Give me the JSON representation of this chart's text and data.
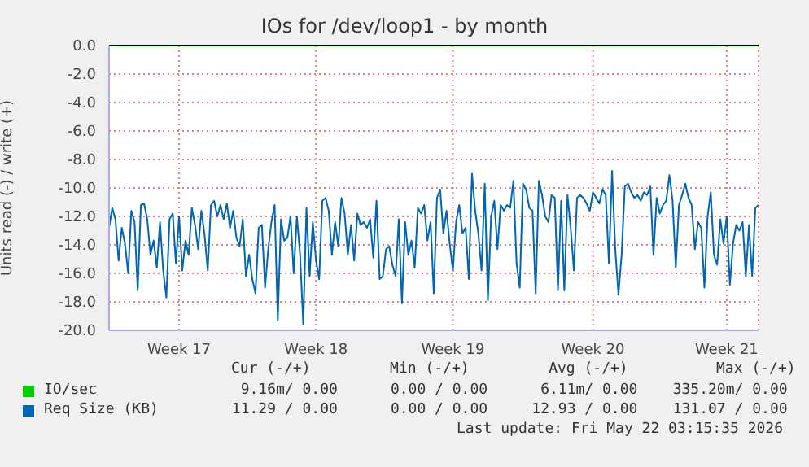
{
  "chart_data": {
    "type": "line",
    "title": "IOs for /dev/loop1 - by month",
    "ylabel": "Units read (-) / write (+)",
    "categories": [
      null,
      null,
      null,
      null,
      null,
      null,
      null,
      null,
      null,
      null,
      null,
      null,
      null,
      null,
      null,
      null,
      null,
      null,
      null,
      null,
      null,
      null,
      "Week 17",
      null,
      null,
      null,
      null,
      null,
      null,
      null,
      null,
      null,
      null,
      null,
      null,
      null,
      null,
      null,
      null,
      null,
      null,
      null,
      null,
      null,
      null,
      null,
      null,
      null,
      null,
      null,
      null,
      null,
      null,
      null,
      null,
      null,
      null,
      null,
      null,
      null,
      null,
      null,
      null,
      null,
      null,
      "Week 18",
      null,
      null,
      null,
      null,
      null,
      null,
      null,
      null,
      null,
      null,
      null,
      null,
      null,
      null,
      null,
      null,
      null,
      null,
      null,
      null,
      null,
      null,
      null,
      null,
      null,
      null,
      null,
      null,
      null,
      null,
      null,
      null,
      null,
      null,
      null,
      null,
      null,
      null,
      null,
      null,
      null,
      null,
      "Week 19",
      null,
      null,
      null,
      null,
      null,
      null,
      null,
      null,
      null,
      null,
      null,
      null,
      null,
      null,
      null,
      null,
      null,
      null,
      null,
      null,
      null,
      null,
      null,
      null,
      null,
      null,
      null,
      null,
      null,
      null,
      null,
      null,
      null,
      null,
      null,
      null,
      null,
      null,
      null,
      null,
      null,
      null,
      null,
      "Week 20",
      null,
      null,
      null,
      null,
      null,
      null,
      null,
      null,
      null,
      null,
      null,
      null,
      null,
      null,
      null,
      null,
      null,
      null,
      null,
      null,
      null,
      null,
      null,
      null,
      null,
      null,
      null,
      null,
      null,
      null,
      null,
      null,
      null,
      null,
      null,
      null,
      null,
      null,
      null,
      null,
      null,
      "Week 21",
      null,
      null,
      null,
      null,
      null,
      null,
      null,
      null,
      null,
      null
    ],
    "ylim": [
      -20,
      0
    ],
    "yticks": [
      {
        "value": -20,
        "label": "-20.0"
      },
      {
        "value": -18,
        "label": "-18.0"
      },
      {
        "value": -16,
        "label": "-16.0"
      },
      {
        "value": -14,
        "label": "-14.0"
      },
      {
        "value": -12,
        "label": "-12.0"
      },
      {
        "value": -10,
        "label": "-10.0"
      },
      {
        "value": -8,
        "label": "-8.0"
      },
      {
        "value": -6,
        "label": "-6.0"
      },
      {
        "value": -4,
        "label": "-4.0"
      },
      {
        "value": -2,
        "label": "-2.0"
      },
      {
        "value": 0,
        "label": "0.0"
      }
    ],
    "grid": true,
    "legend": "bottom",
    "marker": "none",
    "series": [
      {
        "name": "IO/sec",
        "color": "#00cc00",
        "values": [
          0,
          0,
          0,
          0,
          0,
          0,
          0,
          0,
          0,
          0,
          0,
          0,
          0,
          0,
          0,
          0,
          0,
          0,
          0,
          0,
          0,
          0,
          0,
          0,
          0,
          0,
          0,
          0,
          0,
          0,
          0,
          0,
          0,
          0,
          0,
          0,
          0,
          0,
          0,
          0,
          0,
          0,
          0,
          0,
          0,
          0,
          0,
          0,
          0,
          0,
          0,
          0,
          0,
          0,
          0,
          0,
          0,
          0,
          0,
          0,
          0,
          0,
          0,
          0,
          0,
          0,
          0,
          0,
          0,
          0,
          0,
          0,
          0,
          0,
          0,
          0,
          0,
          0,
          0,
          0,
          0,
          0,
          0,
          0,
          0,
          0,
          0,
          0,
          0,
          0,
          0,
          0,
          0,
          0,
          0,
          0,
          0,
          0,
          0,
          0,
          0,
          0,
          0,
          0,
          0,
          0,
          0,
          0,
          0,
          0,
          0,
          0,
          0,
          0,
          0,
          0,
          0,
          0,
          0,
          0,
          0,
          0,
          0,
          0,
          0,
          0,
          0,
          0,
          0,
          0,
          0,
          0,
          0,
          0,
          0,
          0,
          0,
          0,
          0,
          0,
          0,
          0,
          0,
          0,
          0,
          0,
          0,
          0,
          0,
          0,
          0,
          0,
          0,
          0,
          0,
          0,
          0,
          0,
          0,
          0,
          0,
          0,
          0,
          0,
          0,
          0,
          0,
          0,
          0,
          0,
          0,
          0,
          0,
          0,
          0,
          0,
          0,
          0,
          0,
          0,
          0,
          0,
          0,
          0,
          0,
          0,
          0,
          0,
          0,
          0,
          0,
          0,
          0,
          0,
          0,
          0,
          0,
          0,
          0,
          0,
          0,
          0,
          0,
          0,
          0
        ]
      },
      {
        "name": "Req Size (KB)",
        "color": "#0066b3",
        "values": [
          -12.8,
          -11.4,
          -12.2,
          -15.1,
          -12.8,
          -13.9,
          -16.0,
          -11.6,
          -12.4,
          -17.2,
          -11.2,
          -11.1,
          -12.2,
          -14.7,
          -13.7,
          -15.6,
          -12.4,
          -15.8,
          -17.7,
          -12.2,
          -11.8,
          -15.3,
          -12.0,
          -15.8,
          -13.7,
          -14.7,
          -11.4,
          -12.6,
          -14.3,
          -11.6,
          -13.3,
          -15.8,
          -11.2,
          -10.9,
          -12.0,
          -11.2,
          -12.2,
          -11.1,
          -12.8,
          -11.6,
          -13.5,
          -14.1,
          -12.2,
          -16.2,
          -14.7,
          -16.4,
          -17.4,
          -12.8,
          -12.6,
          -17.0,
          -14.3,
          -12.4,
          -11.2,
          -19.3,
          -12.2,
          -13.7,
          -13.5,
          -12.0,
          -16.0,
          -12.0,
          -14.7,
          -19.6,
          -11.4,
          -16.2,
          -12.4,
          -15.1,
          -16.4,
          -10.9,
          -10.7,
          -11.6,
          -14.7,
          -12.4,
          -14.1,
          -10.7,
          -11.8,
          -14.7,
          -12.6,
          -15.1,
          -11.8,
          -12.6,
          -12.4,
          -12.8,
          -12.2,
          -14.9,
          -10.9,
          -16.4,
          -16.2,
          -14.3,
          -14.1,
          -15.4,
          -16.2,
          -12.2,
          -18.1,
          -12.4,
          -14.7,
          -13.7,
          -15.6,
          -11.4,
          -11.8,
          -11.2,
          -13.7,
          -12.4,
          -17.4,
          -10.7,
          -10.1,
          -13.2,
          -11.6,
          -13.9,
          -15.8,
          -12.4,
          -11.2,
          -13.2,
          -12.8,
          -16.4,
          -9.0,
          -11.6,
          -13.2,
          -15.8,
          -9.7,
          -17.9,
          -12.0,
          -10.9,
          -14.3,
          -11.2,
          -11.6,
          -11.2,
          -11.4,
          -9.5,
          -15.3,
          -17.0,
          -9.7,
          -10.1,
          -11.4,
          -11.6,
          -17.4,
          -9.5,
          -10.5,
          -12.0,
          -12.4,
          -10.5,
          -10.7,
          -17.2,
          -10.9,
          -17.2,
          -10.5,
          -12.8,
          -15.8,
          -10.7,
          -10.5,
          -10.7,
          -11.1,
          -11.6,
          -10.3,
          -10.7,
          -11.1,
          -10.1,
          -10.5,
          -15.3,
          -8.8,
          -14.3,
          -17.5,
          -14.7,
          -9.9,
          -9.7,
          -10.3,
          -10.7,
          -10.5,
          -10.9,
          -10.3,
          -10.5,
          -9.9,
          -14.7,
          -10.7,
          -11.8,
          -11.2,
          -10.9,
          -9.1,
          -10.9,
          -15.6,
          -11.2,
          -10.5,
          -9.7,
          -10.7,
          -11.2,
          -14.3,
          -12.4,
          -12.8,
          -17.0,
          -12.0,
          -10.3,
          -14.7,
          -15.4,
          -12.2,
          -13.9,
          -12.0,
          -16.8,
          -13.9,
          -12.6,
          -13.0,
          -12.4,
          -16.2,
          -12.6,
          -16.2,
          -11.4,
          -11.2
        ]
      }
    ],
    "ref_lines": [
      {
        "axis": "y",
        "value": 0,
        "color": "#000000"
      }
    ],
    "annotations": [
      "Cur (-/+)         Min (-/+)         Avg (-/+)          Max (-/+)",
      "  9.16m/ 0.00      0.00 / 0.00      6.11m/ 0.00    335.20m/ 0.00",
      " 11.29 / 0.00      0.00 / 0.00     12.93 / 0.00    131.07 / 0.00",
      "Last update: Fri May 22 03:15:35 2026"
    ]
  }
}
